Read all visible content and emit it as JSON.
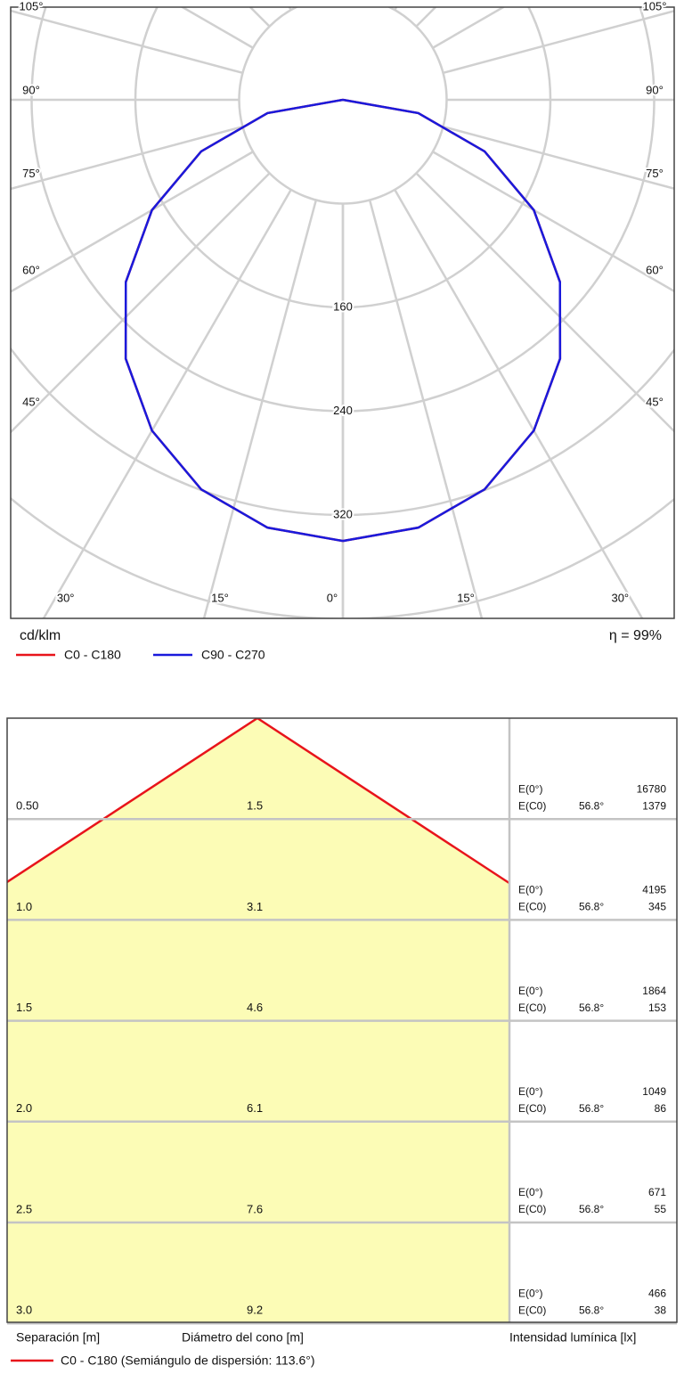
{
  "chart_data": [
    {
      "type": "polar",
      "unit_label": "cd/klm",
      "efficiency": "η = 99%",
      "rlim": [
        0,
        480
      ],
      "rticks": [
        160,
        240,
        320
      ],
      "thetaticks": [
        {
          "value": 0,
          "label": "0°"
        },
        {
          "value": 15,
          "label": "15°"
        },
        {
          "value": 30,
          "label": "30°"
        },
        {
          "value": 45,
          "label": "45°"
        },
        {
          "value": 60,
          "label": "60°"
        },
        {
          "value": 75,
          "label": "75°"
        },
        {
          "value": 90,
          "label": "90°"
        },
        {
          "value": 105,
          "label": "105°"
        }
      ],
      "x": [
        0,
        10,
        20,
        30,
        40,
        50,
        60,
        70,
        80,
        90
      ],
      "series": [
        {
          "name": "C0 - C180",
          "color": "#e8141b",
          "values": [
            340,
            334.8,
            319.5,
            294.4,
            260.5,
            218.5,
            170,
            116.3,
            59,
            0
          ]
        },
        {
          "name": "C90 - C270",
          "color": "#1a1adc",
          "values": [
            340,
            334.8,
            319.5,
            294.4,
            260.5,
            218.5,
            170,
            116.3,
            59,
            0
          ]
        }
      ]
    },
    {
      "type": "cone",
      "columns": [
        "Separación [m]",
        "Diámetro del cono [m]",
        "Intensidad lumínica [lx]"
      ],
      "e0_label": "E(0°)",
      "ec0_label": "E(C0)",
      "heights": [
        0.5,
        1,
        1.5,
        2,
        2.5,
        3
      ],
      "height_labels": [
        "0.50",
        "1.0",
        "1.5",
        "2.0",
        "2.5",
        "3.0"
      ],
      "diameters": [
        1.5,
        3.1,
        4.6,
        6.1,
        7.6,
        9.2
      ],
      "e0": [
        16780,
        4195,
        1864,
        1049,
        671,
        466
      ],
      "ec0": [
        1379,
        345,
        153,
        86,
        55,
        38
      ],
      "angles": [
        56.8,
        56.8,
        56.8,
        56.8,
        56.8,
        56.8
      ],
      "angle_labels": [
        "56.8°",
        "56.8°",
        "56.8°",
        "56.8°",
        "56.8°",
        "56.8°"
      ],
      "series": [
        {
          "name": "C0 - C180 (Semiángulo de dispersión: 113.6°)",
          "color": "#e8141b"
        }
      ]
    }
  ]
}
